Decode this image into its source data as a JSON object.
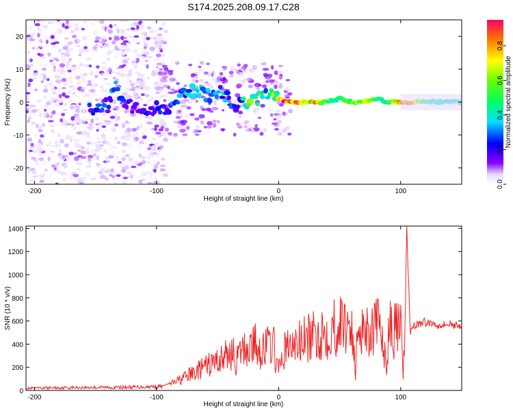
{
  "figure": {
    "title": "S174.2025.208.09.17.C28"
  },
  "chart_data": [
    {
      "type": "heatmap",
      "xlabel": "Height of straight line (km)",
      "ylabel": "Frequency (Hz)",
      "xlim": [
        -207,
        150
      ],
      "ylim": [
        -25,
        25
      ],
      "xticks": [
        -200,
        -100,
        0,
        100
      ],
      "yticks": [
        -20,
        -10,
        0,
        10,
        20
      ],
      "colorbar": {
        "label": "Normalized spectral amplitude",
        "range": [
          0,
          0.95
        ],
        "ticks": [
          "0.0",
          "0.2",
          "0.4",
          "0.6",
          "0.8"
        ],
        "tick_values": [
          0.0,
          0.2,
          0.4,
          0.6,
          0.8
        ],
        "colormap": "rainbow"
      },
      "ridge": [
        {
          "x": -155,
          "f": -2,
          "v": 0.25
        },
        {
          "x": -140,
          "f": -1,
          "v": 0.25
        },
        {
          "x": -135,
          "f": 5,
          "v": 0.3
        },
        {
          "x": -120,
          "f": -2,
          "v": 0.2
        },
        {
          "x": -100,
          "f": -2,
          "v": 0.25
        },
        {
          "x": -90,
          "f": -3,
          "v": 0.3
        },
        {
          "x": -75,
          "f": 4,
          "v": 0.35
        },
        {
          "x": -65,
          "f": 3,
          "v": 0.4
        },
        {
          "x": -55,
          "f": 2,
          "v": 0.3
        },
        {
          "x": -45,
          "f": 3,
          "v": 0.35
        },
        {
          "x": -35,
          "f": -1,
          "v": 0.3
        },
        {
          "x": -20,
          "f": 0,
          "v": 0.6
        },
        {
          "x": -12,
          "f": 3,
          "v": 0.45
        },
        {
          "x": 0,
          "f": 1,
          "v": 0.9
        },
        {
          "x": 10,
          "f": 0,
          "v": 0.95
        },
        {
          "x": 20,
          "f": 0,
          "v": 0.7
        },
        {
          "x": 30,
          "f": 0,
          "v": 0.8
        },
        {
          "x": 40,
          "f": 0,
          "v": 0.55
        },
        {
          "x": 50,
          "f": 1,
          "v": 0.45
        },
        {
          "x": 60,
          "f": 0,
          "v": 0.6
        },
        {
          "x": 70,
          "f": 0,
          "v": 0.7
        },
        {
          "x": 80,
          "f": 1,
          "v": 0.5
        },
        {
          "x": 90,
          "f": 0,
          "v": 0.55
        },
        {
          "x": 105,
          "f": 0,
          "v": 0.95
        },
        {
          "x": 120,
          "f": 0,
          "v": 0.45
        },
        {
          "x": 135,
          "f": 0,
          "v": 0.45
        },
        {
          "x": 150,
          "f": 0,
          "v": 0.45
        }
      ]
    },
    {
      "type": "line",
      "xlabel": "Height of straight line (km)",
      "ylabel": "SNR (10 * v/v)",
      "xlim": [
        -207,
        150
      ],
      "ylim": [
        0,
        1420
      ],
      "xticks": [
        -200,
        -100,
        0,
        100
      ],
      "yticks": [
        0,
        200,
        400,
        600,
        800,
        1000,
        1200,
        1400
      ],
      "color": "#ee2222",
      "series": [
        {
          "x": [
            -207,
            -190,
            -170,
            -150,
            -130,
            -110,
            -95,
            -85,
            -75,
            -65,
            -55,
            -45,
            -38,
            -35,
            -30,
            -25,
            -20,
            -15,
            -10,
            -5,
            0,
            5,
            10,
            20,
            30,
            35,
            40,
            45,
            50,
            55,
            60,
            63,
            65,
            70,
            75,
            80,
            85,
            88,
            90,
            95,
            100,
            102,
            105,
            108,
            110,
            120,
            130,
            140,
            150
          ],
          "values": [
            20,
            25,
            28,
            30,
            30,
            35,
            40,
            80,
            140,
            200,
            260,
            320,
            380,
            280,
            380,
            420,
            450,
            400,
            420,
            480,
            180,
            400,
            420,
            480,
            520,
            560,
            580,
            620,
            630,
            650,
            650,
            130,
            680,
            620,
            600,
            620,
            560,
            200,
            600,
            580,
            600,
            80,
            1400,
            500,
            570,
            600,
            580,
            580,
            570
          ]
        }
      ]
    }
  ]
}
